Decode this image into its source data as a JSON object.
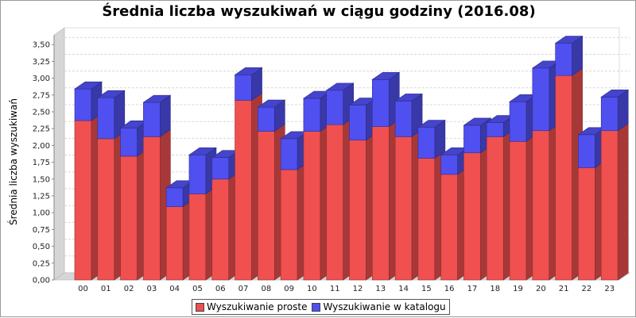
{
  "chart_data": {
    "type": "bar",
    "stacked": true,
    "three_d": true,
    "title": "Średnia liczba wyszukiwań w ciągu godziny (2016.08)",
    "xlabel": "",
    "ylabel": "Średnia liczba wyszukiwań",
    "ylim": [
      0,
      3.75
    ],
    "y_ticks": [
      "0,00",
      "0,25",
      "0,50",
      "0,75",
      "1,00",
      "1,25",
      "1,50",
      "1,75",
      "2,00",
      "2,25",
      "2,50",
      "2,75",
      "3,00",
      "3,25",
      "3,50"
    ],
    "grid": true,
    "legend_position": "bottom",
    "categories": [
      "00",
      "01",
      "02",
      "03",
      "04",
      "05",
      "06",
      "07",
      "08",
      "09",
      "10",
      "11",
      "12",
      "13",
      "14",
      "15",
      "16",
      "17",
      "18",
      "19",
      "20",
      "21",
      "22",
      "23"
    ],
    "series": [
      {
        "name": "Wyszukiwanie proste",
        "color": "#f05050",
        "values": [
          2.37,
          2.1,
          1.84,
          2.13,
          1.09,
          1.28,
          1.5,
          2.67,
          2.21,
          1.64,
          2.21,
          2.31,
          2.08,
          2.28,
          2.13,
          1.81,
          1.57,
          1.89,
          2.13,
          2.06,
          2.22,
          3.04,
          1.67,
          2.22
        ]
      },
      {
        "name": "Wyszukiwanie w katalogu",
        "color": "#5050f0",
        "values": [
          0.47,
          0.61,
          0.42,
          0.51,
          0.28,
          0.58,
          0.32,
          0.38,
          0.36,
          0.46,
          0.49,
          0.51,
          0.52,
          0.7,
          0.53,
          0.46,
          0.29,
          0.41,
          0.21,
          0.59,
          0.93,
          0.48,
          0.49,
          0.5
        ]
      }
    ]
  }
}
